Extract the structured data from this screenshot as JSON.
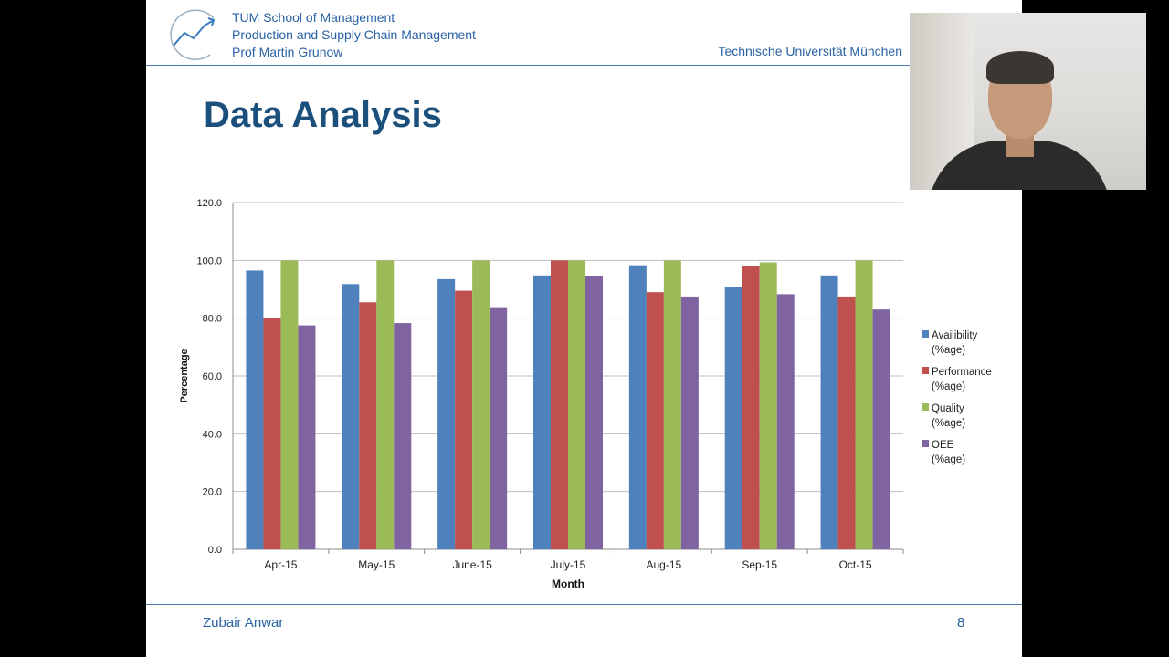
{
  "header": {
    "line1": "TUM School of Management",
    "line2": "Production and Supply Chain Management",
    "line3": "Prof Martin Grunow",
    "university": "Technische Universität München"
  },
  "slide_title": "Data Analysis",
  "footer": {
    "author": "Zubair Anwar",
    "page_number": "8"
  },
  "colors": {
    "header_blue": "#2a62a3",
    "title_blue": "#1b4f7c"
  },
  "chart_data": {
    "type": "bar",
    "title": "",
    "xlabel": "Month",
    "ylabel": "Percentage",
    "ylim": [
      0,
      120
    ],
    "yticks": [
      "0.0",
      "20.0",
      "40.0",
      "60.0",
      "80.0",
      "100.0",
      "120.0"
    ],
    "grid": true,
    "legend_position": "right",
    "categories": [
      "Apr-15",
      "May-15",
      "June-15",
      "July-15",
      "Aug-15",
      "Sep-15",
      "Oct-15"
    ],
    "series": [
      {
        "name": "Availibility (%age)",
        "color": "#4f81bd",
        "values": [
          96.5,
          91.8,
          93.5,
          94.8,
          98.3,
          90.8,
          94.8
        ]
      },
      {
        "name": "Performance (%age)",
        "color": "#c0504d",
        "values": [
          80.2,
          85.5,
          89.5,
          100.0,
          89.0,
          98.0,
          87.5
        ]
      },
      {
        "name": "Quality (%age)",
        "color": "#9bbb59",
        "values": [
          100.0,
          100.0,
          100.0,
          100.0,
          100.0,
          99.3,
          100.0
        ]
      },
      {
        "name": "OEE (%age)",
        "color": "#8064a2",
        "values": [
          77.5,
          78.3,
          83.8,
          94.5,
          87.5,
          88.3,
          83.0
        ]
      }
    ]
  }
}
